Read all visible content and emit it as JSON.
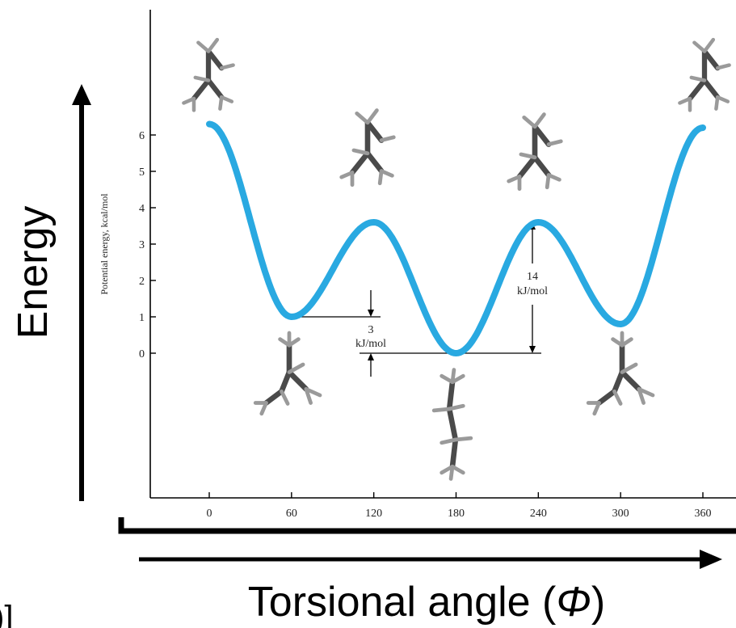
{
  "outer_labels": {
    "energy": "Energy",
    "torsional_angle": "Torsional angle (",
    "phi": "Φ",
    "close_paren": ")",
    "cropped_left_glyph": ")]"
  },
  "chart_data": {
    "type": "line",
    "ylabel": "Potential energy, kcal/mol",
    "xlabel": "",
    "title": "",
    "xlim": [
      0,
      360
    ],
    "ylim": [
      0,
      6
    ],
    "x_ticks": [
      "0",
      "60",
      "120",
      "180",
      "240",
      "300",
      "360"
    ],
    "y_ticks": [
      "0",
      "1",
      "2",
      "3",
      "4",
      "5",
      "6"
    ],
    "series": [
      {
        "color": "#29a9e1",
        "x": [
          0,
          60,
          120,
          180,
          240,
          300,
          360
        ],
        "y": [
          6.3,
          1.0,
          3.6,
          0.0,
          3.6,
          0.8,
          6.2
        ]
      }
    ],
    "annotations": [
      {
        "id": "gauche_gap",
        "line1": "3",
        "line2": "kJ/mol"
      },
      {
        "id": "barrier",
        "line1": "14",
        "line2": "kJ/mol"
      }
    ],
    "grid": false,
    "legend": "none",
    "molecule_icons": [
      "eclipsed",
      "gauche",
      "eclipsed",
      "anti",
      "eclipsed",
      "gauche",
      "eclipsed"
    ]
  }
}
